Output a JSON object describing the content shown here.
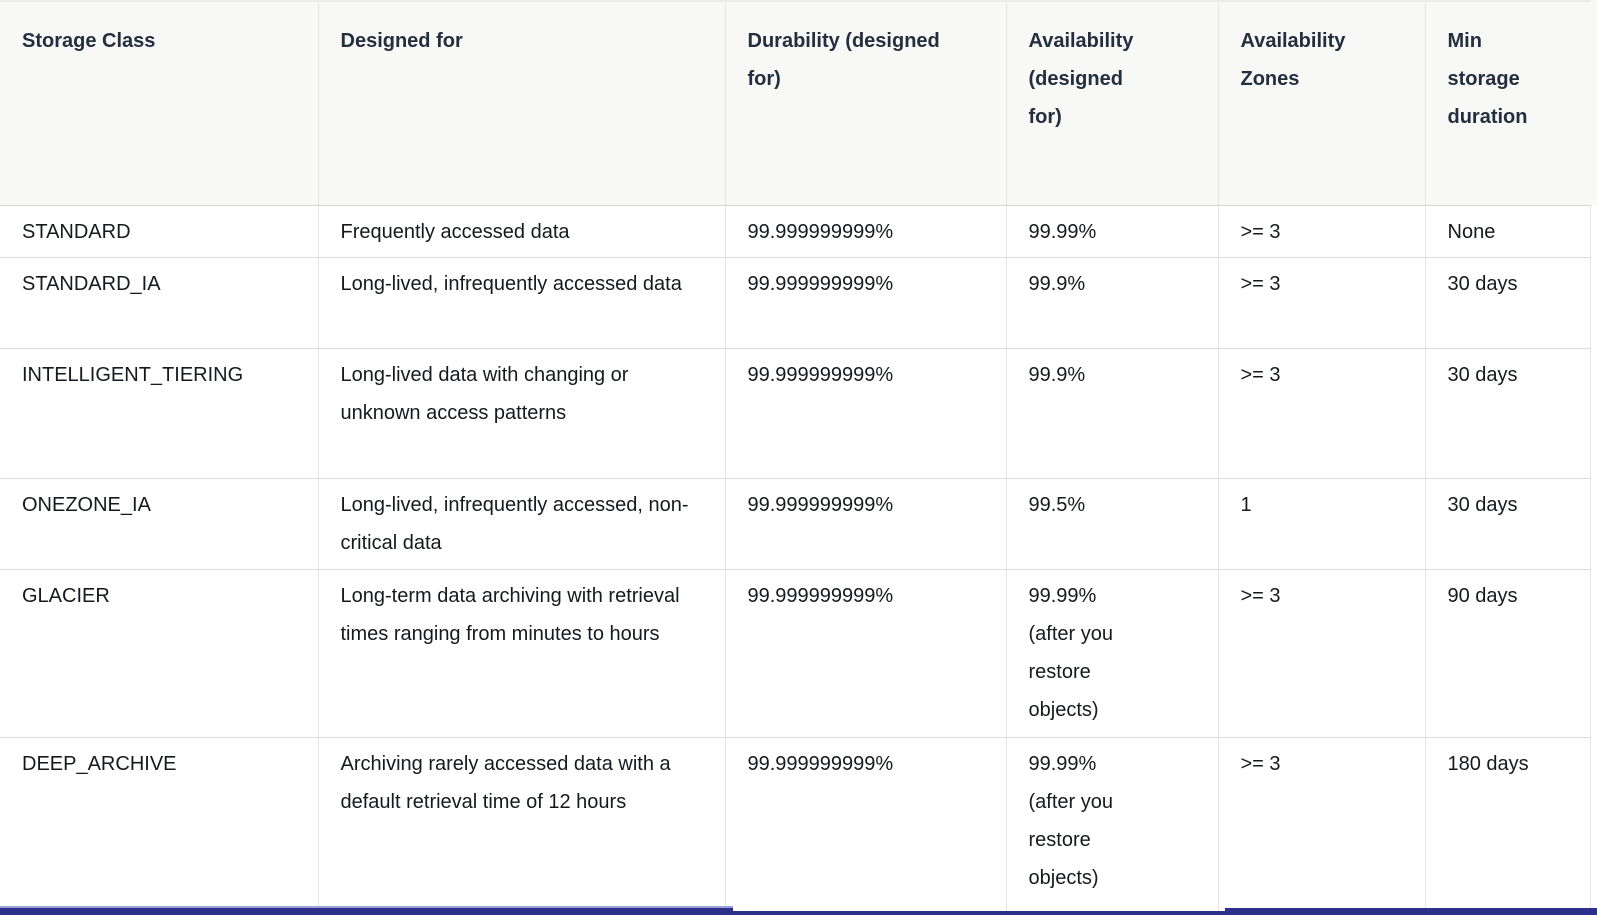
{
  "table": {
    "columns": [
      "Storage Class",
      "Designed for",
      "Durability (designed for)",
      "Availability (designed for)",
      "Availability Zones",
      "Min storage duration"
    ],
    "rows": [
      {
        "cells": [
          "STANDARD",
          "Frequently accessed data",
          "99.999999999%",
          "99.99%",
          ">= 3",
          "None"
        ]
      },
      {
        "cells": [
          "STANDARD_IA",
          "Long-lived, infrequently accessed data",
          "99.999999999%",
          "99.9%",
          ">= 3",
          "30 days"
        ]
      },
      {
        "cells": [
          "INTELLIGENT_TIERING",
          "Long-lived data with changing or unknown access patterns",
          "99.999999999%",
          "99.9%",
          ">= 3",
          "30 days"
        ]
      },
      {
        "cells": [
          "ONEZONE_IA",
          "Long-lived, infrequently accessed, non-critical data",
          "99.999999999%",
          "99.5%",
          "1",
          "30 days"
        ]
      },
      {
        "cells": [
          "GLACIER",
          "Long-term data archiving with retrieval times ranging from minutes to hours",
          "99.999999999%",
          "99.99% (after you restore objects)",
          ">= 3",
          "90 days"
        ]
      },
      {
        "cells": [
          "DEEP_ARCHIVE",
          "Archiving rarely accessed data with a default retrieval time of 12 hours",
          "99.999999999%",
          "99.99% (after you restore objects)",
          ">= 3",
          "180 days"
        ]
      }
    ]
  },
  "colors": {
    "header_background": "#f8f8f7",
    "row_background": "#ffffff",
    "border": "#dcdcdc",
    "text": "#16191f",
    "progress_bar": "#2c2f8c",
    "progress_bar_highlight": "#9aa0d8"
  }
}
